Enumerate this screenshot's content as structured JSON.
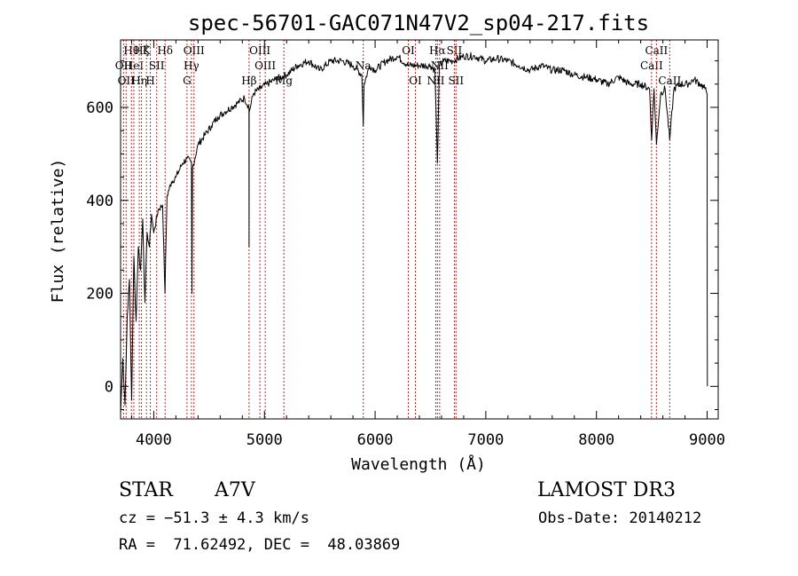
{
  "chart_data": {
    "type": "line",
    "title": "spec-56701-GAC071N47V2_sp04-217.fits",
    "xlabel": "Wavelength (Å)",
    "ylabel": "Flux (relative)",
    "xlim": [
      3700,
      9100
    ],
    "ylim": [
      -70,
      745
    ],
    "xticks": [
      4000,
      5000,
      6000,
      7000,
      8000,
      9000
    ],
    "yticks": [
      0,
      200,
      400,
      600
    ],
    "grid": false,
    "line_color": "#000000",
    "marker_color": "#cc2222",
    "series": [
      {
        "x": [
          3700,
          3720,
          3740,
          3760,
          3780,
          3800,
          3820,
          3840,
          3860,
          3880,
          3900,
          3920,
          3940,
          3960,
          3980,
          4000,
          4040,
          4080,
          4101,
          4120,
          4160,
          4200,
          4260,
          4300,
          4340,
          4345,
          4350,
          4400,
          4460,
          4520,
          4580,
          4640,
          4700,
          4760,
          4820,
          4860,
          4861,
          4862,
          4900,
          4960,
          5020,
          5100,
          5200,
          5300,
          5400,
          5500,
          5600,
          5700,
          5800,
          5880,
          5893,
          5900,
          5950,
          6000,
          6100,
          6200,
          6300,
          6400,
          6500,
          6540,
          6563,
          6580,
          6620,
          6700,
          6800,
          6900,
          7000,
          7100,
          7200,
          7300,
          7400,
          7500,
          7600,
          7700,
          7800,
          7900,
          8000,
          8100,
          8200,
          8300,
          8400,
          8480,
          8498,
          8520,
          8542,
          8580,
          8620,
          8662,
          8700,
          8760,
          8820,
          8880,
          8940,
          8980,
          9000,
          9001,
          9002
        ],
        "y": [
          -60,
          60,
          -40,
          150,
          230,
          -30,
          280,
          140,
          300,
          250,
          360,
          180,
          330,
          300,
          370,
          330,
          380,
          390,
          200,
          410,
          440,
          450,
          480,
          490,
          480,
          200,
          470,
          520,
          540,
          560,
          580,
          590,
          600,
          610,
          620,
          600,
          300,
          590,
          630,
          640,
          650,
          660,
          670,
          690,
          700,
          680,
          700,
          700,
          690,
          670,
          560,
          650,
          690,
          680,
          700,
          710,
          690,
          690,
          690,
          680,
          480,
          690,
          700,
          700,
          710,
          710,
          700,
          705,
          700,
          690,
          680,
          690,
          680,
          680,
          670,
          665,
          660,
          650,
          665,
          650,
          650,
          640,
          530,
          640,
          520,
          630,
          640,
          530,
          640,
          650,
          650,
          660,
          650,
          640,
          630,
          180,
          0
        ]
      }
    ],
    "line_markers": [
      {
        "x": 3727,
        "label": "OII",
        "row": 1
      },
      {
        "x": 3750,
        "label": "OII",
        "row": 2
      },
      {
        "x": 3798,
        "label": "Hθ",
        "row": 0
      },
      {
        "x": 3820,
        "label": "HeI",
        "row": 1
      },
      {
        "x": 3869,
        "label": "Hη",
        "row": 2
      },
      {
        "x": 3889,
        "label": "Hζ",
        "row": 0
      },
      {
        "x": 3934,
        "label": "K",
        "row": 0
      },
      {
        "x": 3969,
        "label": "H",
        "row": 2
      },
      {
        "x": 4026,
        "label": "SII",
        "row": 1
      },
      {
        "x": 4102,
        "label": "Hδ",
        "row": 0
      },
      {
        "x": 4300,
        "label": "G",
        "row": 2
      },
      {
        "x": 4340,
        "label": "Hγ",
        "row": 1
      },
      {
        "x": 4363,
        "label": "OIII",
        "row": 0
      },
      {
        "x": 4861,
        "label": "Hβ",
        "row": 2
      },
      {
        "x": 4959,
        "label": "OIII",
        "row": 0
      },
      {
        "x": 5007,
        "label": "OIII",
        "row": 1
      },
      {
        "x": 5175,
        "label": "Mg",
        "row": 2
      },
      {
        "x": 5893,
        "label": "Na",
        "row": 1
      },
      {
        "x": 6300,
        "label": "OI",
        "row": 0
      },
      {
        "x": 6364,
        "label": "OI",
        "row": 2
      },
      {
        "x": 6548,
        "label": "NII",
        "row": 2
      },
      {
        "x": 6563,
        "label": "Hα",
        "row": 0
      },
      {
        "x": 6583,
        "label": "NII",
        "row": 1
      },
      {
        "x": 6716,
        "label": "SII",
        "row": 0
      },
      {
        "x": 6731,
        "label": "SII",
        "row": 2
      },
      {
        "x": 8498,
        "label": "CaII",
        "row": 1
      },
      {
        "x": 8542,
        "label": "CaII",
        "row": 0
      },
      {
        "x": 8662,
        "label": "CaII",
        "row": 2
      }
    ]
  },
  "info": {
    "object_class": "STAR",
    "subclass": "A7V",
    "survey": "LAMOST DR3",
    "cz": "cz = −51.3 ± 4.3 km/s",
    "obs_date": "Obs-Date: 20140212",
    "radec": "RA =  71.62492, DEC =  48.03869"
  }
}
